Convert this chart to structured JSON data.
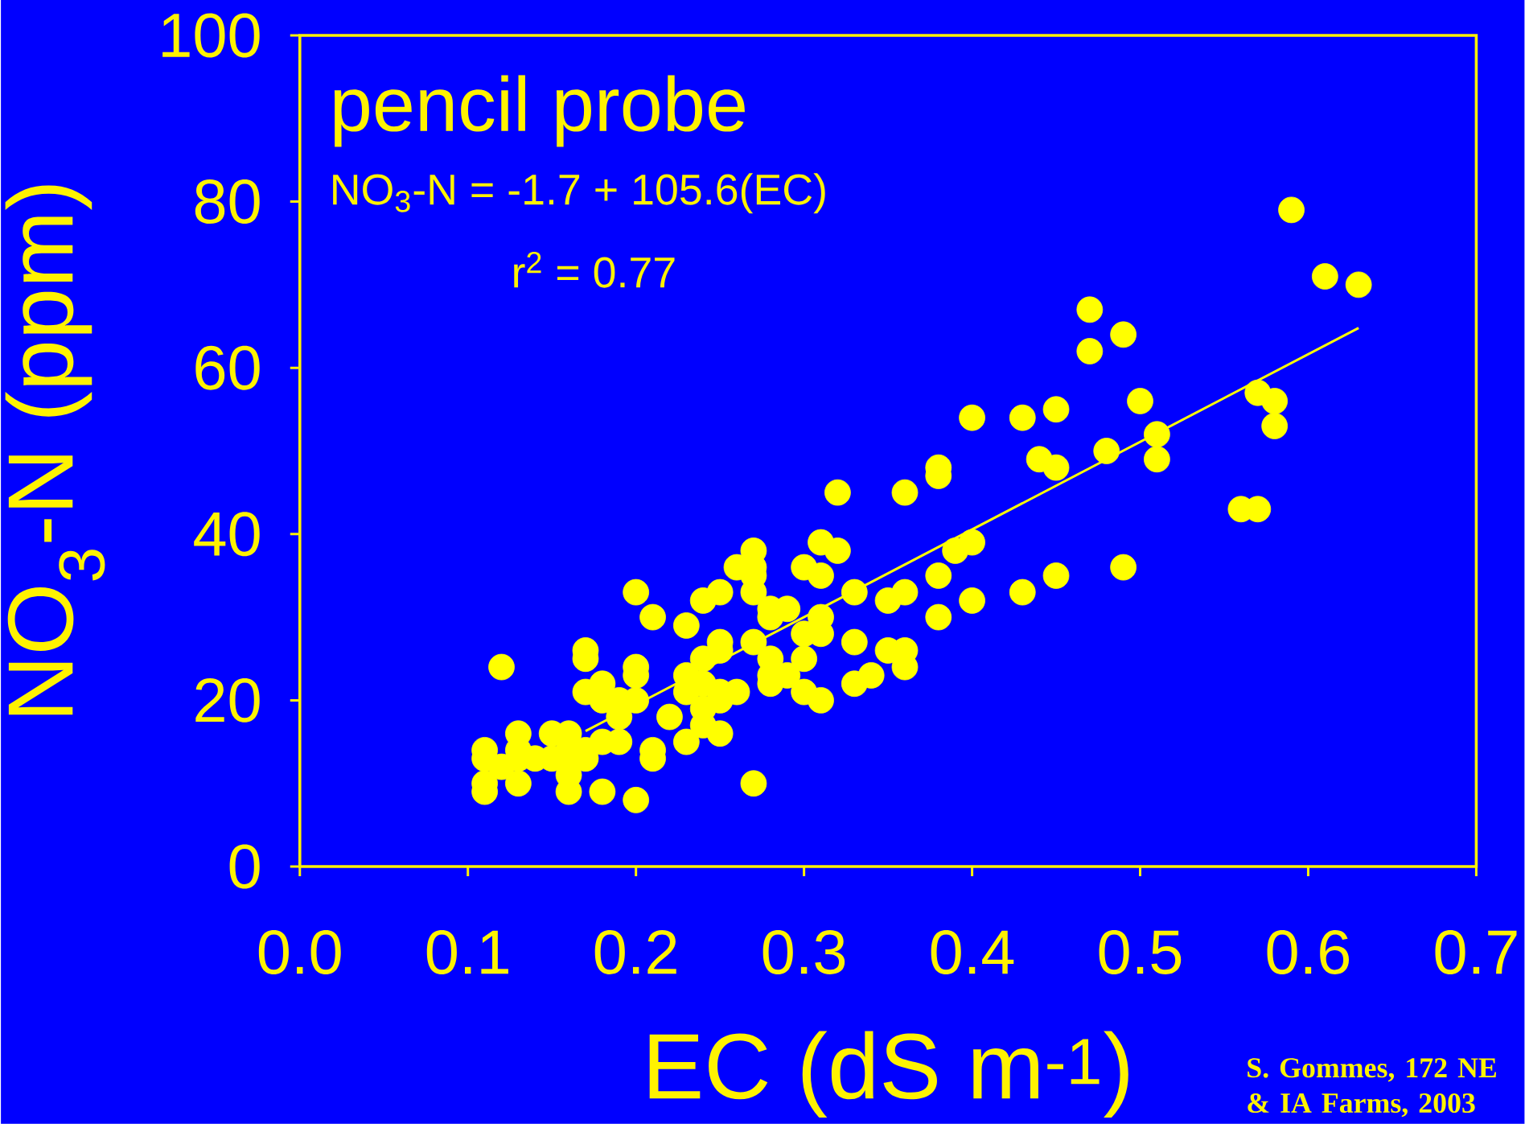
{
  "chart_data": {
    "type": "scatter",
    "xlabel": "EC (dS m$^{-1}$)",
    "ylabel": "NO$_{3}$-N (ppm)",
    "annotations": [
      "pencil probe",
      "NO$_{3}$-N = -1.7 + 105.6(EC)",
      "r$^{2}$ = 0.77",
      "S. Gommes, 172 NE & IA Farms, 2003"
    ],
    "xlim": [
      0,
      0.7
    ],
    "ylim": [
      0,
      100
    ],
    "xticks": [
      {
        "value": 0,
        "label": "0.0"
      },
      {
        "value": 0.1,
        "label": "0.1"
      },
      {
        "value": 0.2,
        "label": "0.2"
      },
      {
        "value": 0.3,
        "label": "0.3"
      },
      {
        "value": 0.4,
        "label": "0.4"
      },
      {
        "value": 0.5,
        "label": "0.5"
      },
      {
        "value": 0.6,
        "label": "0.6"
      },
      {
        "value": 0.7,
        "label": "0.7"
      }
    ],
    "yticks": [
      0,
      20,
      40,
      60,
      80,
      100
    ],
    "series": [
      {
        "marker": "circle",
        "color": "#ffff00",
        "x": [
          0.11,
          0.11,
          0.11,
          0.11,
          0.12,
          0.12,
          0.13,
          0.13,
          0.13,
          0.13,
          0.14,
          0.15,
          0.15,
          0.16,
          0.16,
          0.16,
          0.16,
          0.16,
          0.17,
          0.17,
          0.17,
          0.17,
          0.17,
          0.18,
          0.18,
          0.18,
          0.18,
          0.19,
          0.19,
          0.19,
          0.2,
          0.2,
          0.2,
          0.2,
          0.2,
          0.21,
          0.21,
          0.21,
          0.22,
          0.23,
          0.23,
          0.23,
          0.23,
          0.24,
          0.24,
          0.24,
          0.24,
          0.24,
          0.25,
          0.25,
          0.25,
          0.25,
          0.25,
          0.25,
          0.26,
          0.26,
          0.27,
          0.27,
          0.27,
          0.27,
          0.27,
          0.27,
          0.28,
          0.28,
          0.28,
          0.28,
          0.28,
          0.29,
          0.29,
          0.3,
          0.3,
          0.3,
          0.3,
          0.31,
          0.31,
          0.31,
          0.31,
          0.31,
          0.32,
          0.32,
          0.33,
          0.33,
          0.33,
          0.34,
          0.35,
          0.35,
          0.36,
          0.36,
          0.36,
          0.36,
          0.38,
          0.38,
          0.38,
          0.38,
          0.39,
          0.4,
          0.4,
          0.4,
          0.43,
          0.43,
          0.44,
          0.45,
          0.45,
          0.45,
          0.47,
          0.47,
          0.48,
          0.49,
          0.49,
          0.5,
          0.51,
          0.51,
          0.56,
          0.57,
          0.57,
          0.58,
          0.58,
          0.59,
          0.61,
          0.63
        ],
        "values": [
          14,
          13,
          10,
          9,
          24,
          12,
          16,
          14,
          13,
          10,
          13,
          16,
          13,
          16,
          14,
          13,
          11,
          9,
          26,
          25,
          21,
          14,
          13,
          22,
          20,
          15,
          9,
          20,
          18,
          15,
          33,
          24,
          23,
          20,
          8,
          30,
          14,
          13,
          18,
          29,
          23,
          21,
          15,
          32,
          25,
          22,
          19,
          17,
          33,
          27,
          26,
          21,
          20,
          16,
          36,
          21,
          38,
          36,
          35,
          33,
          27,
          10,
          31,
          30,
          25,
          23,
          22,
          31,
          23,
          36,
          28,
          25,
          21,
          39,
          35,
          30,
          28,
          20,
          45,
          38,
          33,
          27,
          22,
          23,
          32,
          26,
          45,
          33,
          26,
          24,
          48,
          47,
          35,
          30,
          38,
          54,
          39,
          32,
          54,
          33,
          49,
          55,
          48,
          35,
          67,
          62,
          50,
          64,
          36,
          56,
          52,
          49,
          43,
          57,
          43,
          56,
          53,
          79,
          71,
          70
        ]
      },
      {
        "type": "line",
        "marker": "none",
        "color": "#ffff00",
        "x": [
          0.17,
          0.63
        ],
        "values": [
          16.3,
          64.8
        ]
      }
    ]
  }
}
